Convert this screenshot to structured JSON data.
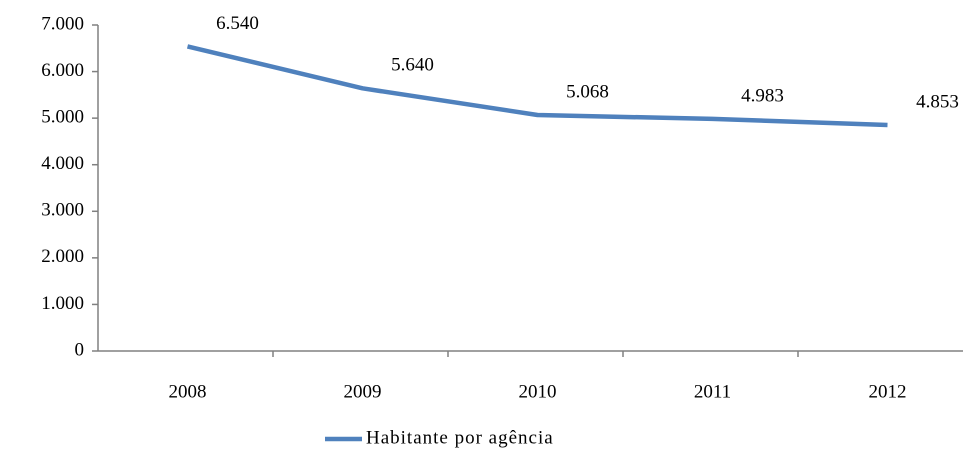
{
  "chart_data": {
    "type": "line",
    "categories": [
      "2008",
      "2009",
      "2010",
      "2011",
      "2012"
    ],
    "series": [
      {
        "name": "Habitante por agência",
        "color": "#4f81bd",
        "values": [
          6540,
          5640,
          5068,
          4983,
          4853
        ],
        "value_labels": [
          "6.540",
          "5.640",
          "5.068",
          "4.983",
          "4.853"
        ]
      }
    ],
    "ylim": [
      0,
      7000
    ],
    "yticks": [
      0,
      {
        "value": 1000,
        "label": "1.000"
      },
      {
        "value": 2000,
        "label": "2.000"
      },
      {
        "value": 3000,
        "label": "3.000"
      },
      {
        "value": 4000,
        "label": "4.000"
      },
      {
        "value": 5000,
        "label": "5.000"
      },
      {
        "value": 6000,
        "label": "6.000"
      },
      {
        "value": 7000,
        "label": "7.000"
      }
    ],
    "legend": "bottom"
  }
}
